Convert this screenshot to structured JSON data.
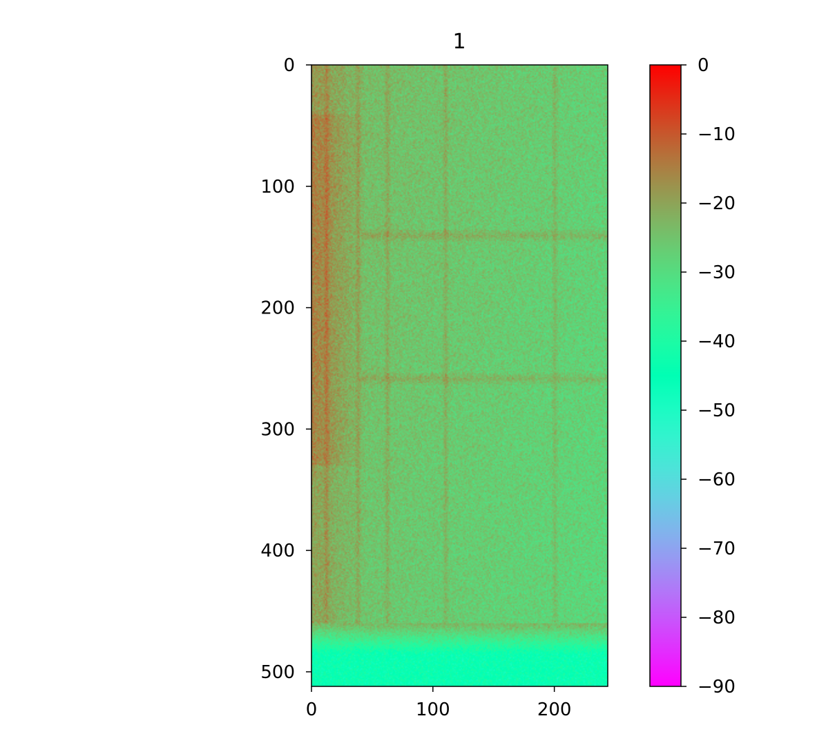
{
  "chart_data": {
    "type": "heatmap",
    "title": "1",
    "xlabel": "",
    "ylabel": "",
    "colormap": "rainbow",
    "x_range": [
      0,
      244
    ],
    "y_range": [
      0,
      512
    ],
    "y_inverted": true,
    "x_ticks": [
      0,
      100,
      200
    ],
    "x_tick_labels": [
      "0",
      "100",
      "200"
    ],
    "y_ticks": [
      0,
      100,
      200,
      300,
      400,
      500
    ],
    "y_tick_labels": [
      "0",
      "100",
      "200",
      "300",
      "400",
      "500"
    ],
    "colorbar": {
      "range": [
        -90,
        0
      ],
      "ticks": [
        0,
        -10,
        -20,
        -30,
        -40,
        -50,
        -60,
        -70,
        -80,
        -90
      ],
      "tick_labels": [
        "0",
        "−10",
        "−20",
        "−30",
        "−40",
        "−50",
        "−60",
        "−70",
        "−80",
        "−90"
      ]
    },
    "structure": {
      "base_level_top_rows": -23,
      "base_level_bottom_rows": -44,
      "bottom_band_start_row": 460,
      "top_left_hot_region": {
        "x_to": 45,
        "y_from": 40,
        "y_to": 330,
        "level": -13
      },
      "vertical_streaks_x": [
        12,
        38,
        62,
        110,
        200
      ],
      "horizontal_streaks_y": [
        140,
        258
      ],
      "noise_db": 6
    }
  }
}
